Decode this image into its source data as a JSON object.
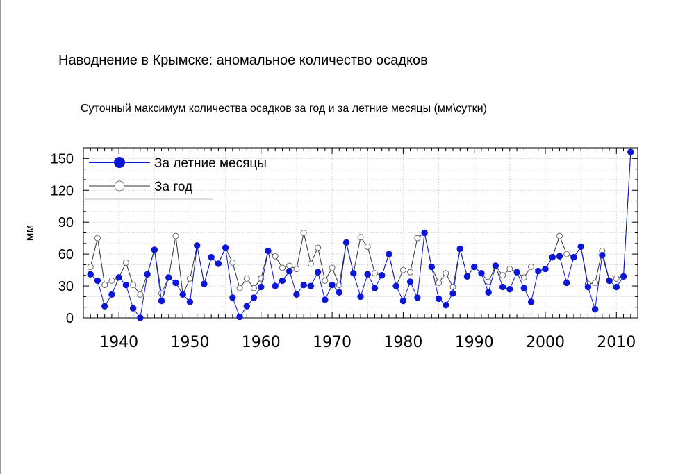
{
  "header": {
    "title": "Наводнение в Крымске: аномальное количество осадков",
    "subtitle": "Суточный максимум количества осадков за год и за летние месяцы (мм\\сутки)"
  },
  "chart_data": {
    "type": "line",
    "title": "Суточный максимум количества осадков за год и за летние месяцы (мм\\сутки)",
    "xlabel": "",
    "ylabel": "мм",
    "xlim": [
      1935,
      2013
    ],
    "ylim": [
      0,
      160
    ],
    "yticks": [
      0,
      30,
      60,
      90,
      120,
      150
    ],
    "xticks": [
      1940,
      1950,
      1960,
      1970,
      1980,
      1990,
      2000,
      2010
    ],
    "grid": true,
    "legend_position": "top-left",
    "x": [
      1936,
      1937,
      1938,
      1939,
      1940,
      1941,
      1942,
      1943,
      1944,
      1945,
      1946,
      1947,
      1948,
      1949,
      1950,
      1951,
      1952,
      1953,
      1954,
      1955,
      1956,
      1957,
      1958,
      1959,
      1960,
      1961,
      1962,
      1963,
      1964,
      1965,
      1966,
      1967,
      1968,
      1969,
      1970,
      1971,
      1972,
      1973,
      1974,
      1975,
      1976,
      1977,
      1978,
      1979,
      1980,
      1981,
      1982,
      1983,
      1984,
      1985,
      1986,
      1987,
      1988,
      1989,
      1990,
      1991,
      1992,
      1993,
      1994,
      1995,
      1996,
      1997,
      1998,
      1999,
      2000,
      2001,
      2002,
      2003,
      2004,
      2005,
      2006,
      2007,
      2008,
      2009,
      2010,
      2011,
      2012
    ],
    "series": [
      {
        "name": "За летние месяцы",
        "color": "#0b16d6",
        "marker": "filled-circle",
        "values": [
          41,
          35,
          11,
          22,
          38,
          31,
          9,
          0,
          41,
          64,
          16,
          38,
          33,
          22,
          15,
          68,
          32,
          57,
          51,
          66,
          19,
          1,
          11,
          19,
          29,
          63,
          30,
          35,
          44,
          22,
          31,
          30,
          43,
          17,
          31,
          24,
          71,
          42,
          20,
          41,
          28,
          40,
          60,
          30,
          16,
          34,
          19,
          80,
          48,
          18,
          12,
          23,
          65,
          39,
          48,
          42,
          24,
          49,
          29,
          27,
          43,
          28,
          15,
          44,
          46,
          57,
          58,
          33,
          57,
          67,
          29,
          8,
          59,
          35,
          29,
          39,
          156
        ]
      },
      {
        "name": "За год",
        "color": "#333333",
        "marker": "open-circle",
        "values": [
          48,
          75,
          31,
          35,
          38,
          52,
          31,
          22,
          41,
          64,
          23,
          38,
          77,
          22,
          37,
          68,
          32,
          57,
          51,
          66,
          52,
          28,
          37,
          28,
          37,
          63,
          58,
          47,
          49,
          46,
          80,
          51,
          66,
          35,
          47,
          31,
          71,
          42,
          76,
          67,
          42,
          40,
          60,
          30,
          45,
          43,
          75,
          80,
          48,
          33,
          42,
          29,
          65,
          39,
          48,
          42,
          34,
          49,
          40,
          46,
          43,
          38,
          48,
          44,
          46,
          57,
          77,
          60,
          57,
          67,
          32,
          33,
          63,
          35,
          37,
          39,
          156
        ]
      }
    ]
  }
}
